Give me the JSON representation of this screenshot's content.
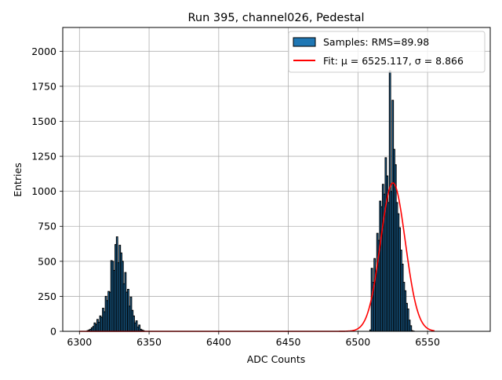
{
  "chart_data": {
    "type": "bar",
    "title": "Run 395, channel026, Pedestal",
    "xlabel": "ADC Counts",
    "ylabel": "Entries",
    "xlim": [
      6288,
      6595
    ],
    "ylim": [
      0,
      2170
    ],
    "xticks": [
      6300,
      6350,
      6400,
      6450,
      6500,
      6550
    ],
    "yticks": [
      0,
      250,
      500,
      750,
      1000,
      1250,
      1500,
      1750,
      2000
    ],
    "grid": true,
    "legend_position": "upper right",
    "colors": {
      "bars": "#1f77b4",
      "bar_edge": "#000000",
      "fit": "#ff0000",
      "grid": "#b0b0b0"
    },
    "series": [
      {
        "name": "Samples: RMS=89.98",
        "kind": "histogram",
        "bin_width": 1,
        "bins": [
          {
            "x": 6306,
            "y": 5
          },
          {
            "x": 6307,
            "y": 10
          },
          {
            "x": 6308,
            "y": 15
          },
          {
            "x": 6309,
            "y": 25
          },
          {
            "x": 6310,
            "y": 35
          },
          {
            "x": 6311,
            "y": 60
          },
          {
            "x": 6312,
            "y": 50
          },
          {
            "x": 6313,
            "y": 85
          },
          {
            "x": 6314,
            "y": 65
          },
          {
            "x": 6315,
            "y": 110
          },
          {
            "x": 6316,
            "y": 100
          },
          {
            "x": 6317,
            "y": 165
          },
          {
            "x": 6318,
            "y": 140
          },
          {
            "x": 6319,
            "y": 250
          },
          {
            "x": 6320,
            "y": 220
          },
          {
            "x": 6321,
            "y": 285
          },
          {
            "x": 6322,
            "y": 280
          },
          {
            "x": 6323,
            "y": 505
          },
          {
            "x": 6324,
            "y": 500
          },
          {
            "x": 6325,
            "y": 435
          },
          {
            "x": 6326,
            "y": 620
          },
          {
            "x": 6327,
            "y": 675
          },
          {
            "x": 6328,
            "y": 490
          },
          {
            "x": 6329,
            "y": 615
          },
          {
            "x": 6330,
            "y": 560
          },
          {
            "x": 6331,
            "y": 500
          },
          {
            "x": 6332,
            "y": 340
          },
          {
            "x": 6333,
            "y": 420
          },
          {
            "x": 6334,
            "y": 280
          },
          {
            "x": 6335,
            "y": 300
          },
          {
            "x": 6336,
            "y": 180
          },
          {
            "x": 6337,
            "y": 245
          },
          {
            "x": 6338,
            "y": 150
          },
          {
            "x": 6339,
            "y": 110
          },
          {
            "x": 6340,
            "y": 60
          },
          {
            "x": 6341,
            "y": 75
          },
          {
            "x": 6342,
            "y": 30
          },
          {
            "x": 6343,
            "y": 45
          },
          {
            "x": 6344,
            "y": 15
          },
          {
            "x": 6345,
            "y": 10
          },
          {
            "x": 6346,
            "y": 5
          },
          {
            "x": 6509,
            "y": 10
          },
          {
            "x": 6510,
            "y": 450
          },
          {
            "x": 6511,
            "y": 350
          },
          {
            "x": 6512,
            "y": 520
          },
          {
            "x": 6513,
            "y": 400
          },
          {
            "x": 6514,
            "y": 700
          },
          {
            "x": 6515,
            "y": 650
          },
          {
            "x": 6516,
            "y": 930
          },
          {
            "x": 6517,
            "y": 890
          },
          {
            "x": 6518,
            "y": 1050
          },
          {
            "x": 6519,
            "y": 980
          },
          {
            "x": 6520,
            "y": 1240
          },
          {
            "x": 6521,
            "y": 1110
          },
          {
            "x": 6522,
            "y": 920
          },
          {
            "x": 6523,
            "y": 1860
          },
          {
            "x": 6524,
            "y": 1000
          },
          {
            "x": 6525,
            "y": 1650
          },
          {
            "x": 6526,
            "y": 1300
          },
          {
            "x": 6527,
            "y": 1190
          },
          {
            "x": 6528,
            "y": 920
          },
          {
            "x": 6529,
            "y": 840
          },
          {
            "x": 6530,
            "y": 740
          },
          {
            "x": 6531,
            "y": 580
          },
          {
            "x": 6532,
            "y": 480
          },
          {
            "x": 6533,
            "y": 350
          },
          {
            "x": 6534,
            "y": 290
          },
          {
            "x": 6535,
            "y": 200
          },
          {
            "x": 6536,
            "y": 160
          },
          {
            "x": 6537,
            "y": 80
          },
          {
            "x": 6538,
            "y": 40
          },
          {
            "x": 6539,
            "y": 5
          },
          {
            "x": 6540,
            "y": 2
          }
        ]
      },
      {
        "name": "Fit: μ = 6525.117, σ = 8.866",
        "kind": "gaussian",
        "mu": 6525.117,
        "sigma": 8.866,
        "amplitude": 1060,
        "x_range": [
          6300,
          6555
        ]
      }
    ]
  }
}
